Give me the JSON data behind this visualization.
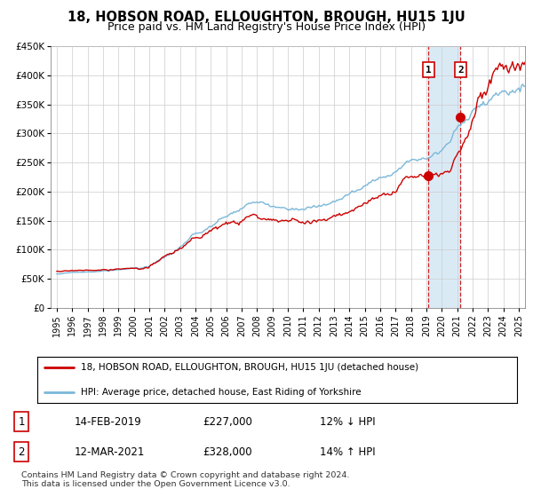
{
  "title": "18, HOBSON ROAD, ELLOUGHTON, BROUGH, HU15 1JU",
  "subtitle": "Price paid vs. HM Land Registry's House Price Index (HPI)",
  "ylabel_ticks": [
    "£0",
    "£50K",
    "£100K",
    "£150K",
    "£200K",
    "£250K",
    "£300K",
    "£350K",
    "£400K",
    "£450K"
  ],
  "ylabel_values": [
    0,
    50000,
    100000,
    150000,
    200000,
    250000,
    300000,
    350000,
    400000,
    450000
  ],
  "xlim_left": 1994.6,
  "xlim_right": 2025.4,
  "ylim": [
    0,
    450000
  ],
  "x_ticks": [
    1995,
    1996,
    1997,
    1998,
    1999,
    2000,
    2001,
    2002,
    2003,
    2004,
    2005,
    2006,
    2007,
    2008,
    2009,
    2010,
    2011,
    2012,
    2013,
    2014,
    2015,
    2016,
    2017,
    2018,
    2019,
    2020,
    2021,
    2022,
    2023,
    2024,
    2025
  ],
  "sale1_x": 2019.12,
  "sale1_y": 227000,
  "sale2_x": 2021.21,
  "sale2_y": 328000,
  "hpi_color": "#7ab8d9",
  "price_color": "#cc0000",
  "vline_color": "#cc0000",
  "shade_color": "#daeaf5",
  "legend_label1": "18, HOBSON ROAD, ELLOUGHTON, BROUGH, HU15 1JU (detached house)",
  "legend_label2": "HPI: Average price, detached house, East Riding of Yorkshire",
  "table_row1": [
    "1",
    "14-FEB-2019",
    "£227,000",
    "12% ↓ HPI"
  ],
  "table_row2": [
    "2",
    "12-MAR-2021",
    "£328,000",
    "14% ↑ HPI"
  ],
  "footnote": "Contains HM Land Registry data © Crown copyright and database right 2024.\nThis data is licensed under the Open Government Licence v3.0.",
  "bg_color": "#ffffff",
  "grid_color": "#cccccc"
}
